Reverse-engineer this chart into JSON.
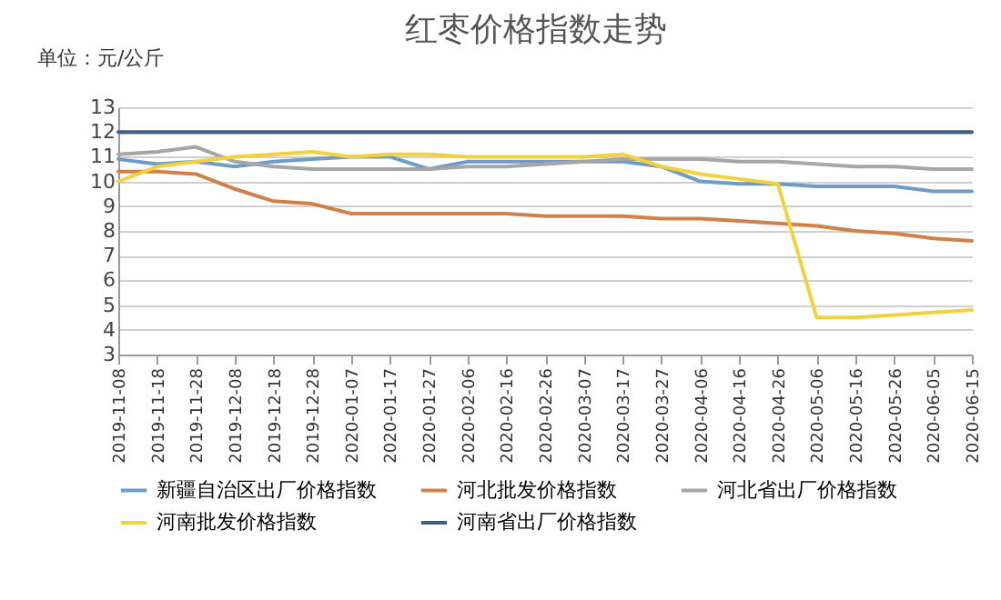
{
  "chart_data": {
    "type": "line",
    "title": "红枣价格指数走势",
    "ylabel": "单位：元/公斤",
    "categories": [
      "2019-11-08",
      "2019-11-18",
      "2019-11-28",
      "2019-12-08",
      "2019-12-18",
      "2019-12-28",
      "2020-01-07",
      "2020-01-17",
      "2020-01-27",
      "2020-02-06",
      "2020-02-16",
      "2020-02-26",
      "2020-03-07",
      "2020-03-17",
      "2020-03-27",
      "2020-04-06",
      "2020-04-16",
      "2020-04-26",
      "2020-05-06",
      "2020-05-16",
      "2020-05-26",
      "2020-06-05",
      "2020-06-15"
    ],
    "series": [
      {
        "name": "新疆自治区出厂价格指数",
        "color": "#6f9bc8",
        "values": [
          10.9,
          10.7,
          10.8,
          10.6,
          10.8,
          10.9,
          11.0,
          11.0,
          10.5,
          10.8,
          10.8,
          10.8,
          10.8,
          10.8,
          10.6,
          10.0,
          9.9,
          9.9,
          9.8,
          9.8,
          9.8,
          9.6,
          9.6
        ]
      },
      {
        "name": "河北批发价格指数",
        "color": "#d0804a",
        "values": [
          10.4,
          10.4,
          10.3,
          9.7,
          9.2,
          9.1,
          8.7,
          8.7,
          8.7,
          8.7,
          8.7,
          8.6,
          8.6,
          8.6,
          8.5,
          8.5,
          8.4,
          8.3,
          8.2,
          8.0,
          7.9,
          7.7,
          7.6
        ]
      },
      {
        "name": "河北省出厂价格指数",
        "color": "#a6a6a6",
        "values": [
          11.1,
          11.2,
          11.4,
          10.8,
          10.6,
          10.5,
          10.5,
          10.5,
          10.5,
          10.6,
          10.6,
          10.7,
          10.8,
          10.9,
          10.9,
          10.9,
          10.8,
          10.8,
          10.7,
          10.6,
          10.6,
          10.5,
          10.5
        ]
      },
      {
        "name": "河南批发价格指数",
        "color": "#f2d23c",
        "values": [
          10.0,
          10.6,
          10.8,
          11.0,
          11.1,
          11.2,
          11.0,
          11.1,
          11.1,
          11.0,
          11.0,
          11.0,
          11.0,
          11.1,
          10.6,
          10.3,
          10.1,
          9.9,
          4.5,
          4.5,
          4.6,
          4.7,
          4.8
        ]
      },
      {
        "name": "河南省出厂价格指数",
        "color": "#3e5f86",
        "values": [
          12,
          12,
          12,
          12,
          12,
          12,
          12,
          12,
          12,
          12,
          12,
          12,
          12,
          12,
          12,
          12,
          12,
          12,
          12,
          12,
          12,
          12,
          12
        ]
      }
    ],
    "ylim": [
      3,
      13
    ],
    "yticks": [
      3,
      4,
      5,
      6,
      7,
      8,
      9,
      10,
      11,
      12,
      13
    ],
    "grid": "y",
    "legend": "bottom",
    "marker": "none",
    "line_style": "solid"
  }
}
